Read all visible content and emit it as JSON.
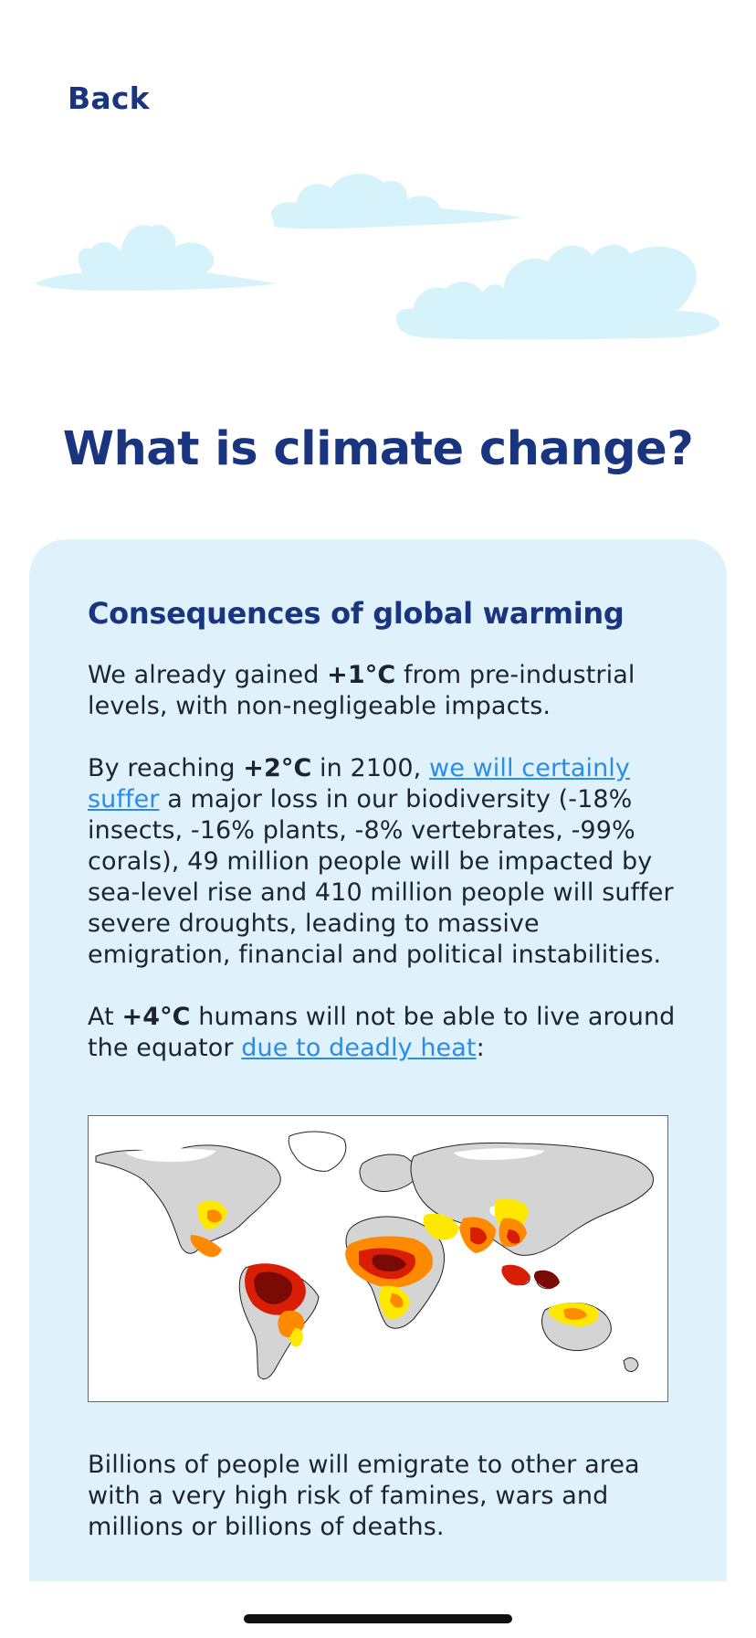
{
  "nav": {
    "back_label": "Back"
  },
  "page": {
    "title": "What is climate change?"
  },
  "card": {
    "heading": "Consequences of global warming",
    "p1": {
      "a": "We already gained ",
      "b": "+1°C",
      "c": " from pre-industrial levels, with non-negligeable impacts."
    },
    "p2": {
      "a": "By reaching ",
      "b": "+2°C",
      "c": " in 2100, ",
      "link": "we will certainly suffer",
      "d": " a major loss in our biodiversity (-18% insects, -16% plants, -8% vertebrates, -99% corals), 49 million people will be impacted by sea-level rise and 410 million people will suffer severe droughts, leading to massive emigration, financial and political instabilities."
    },
    "p3": {
      "a": "At ",
      "b": "+4°C",
      "c": " humans will not be able to live around the equator ",
      "link": "due to deadly heat",
      "d": ":"
    },
    "map": {
      "icon": "world-heat-map",
      "colors": {
        "land": "#d4d4d4",
        "ice": "#ffffff",
        "yellow": "#ffe800",
        "orange": "#ff8a00",
        "red": "#d81e05",
        "darkred": "#7a0a06"
      }
    },
    "p4": "Billions of people will emigrate to other area with a very high risk of famines, wars and millions or billions of deaths."
  },
  "colors": {
    "navy": "#1a3580",
    "card_bg": "#dff2fc",
    "cloud": "#d6f3fc",
    "link": "#2c8be8"
  }
}
